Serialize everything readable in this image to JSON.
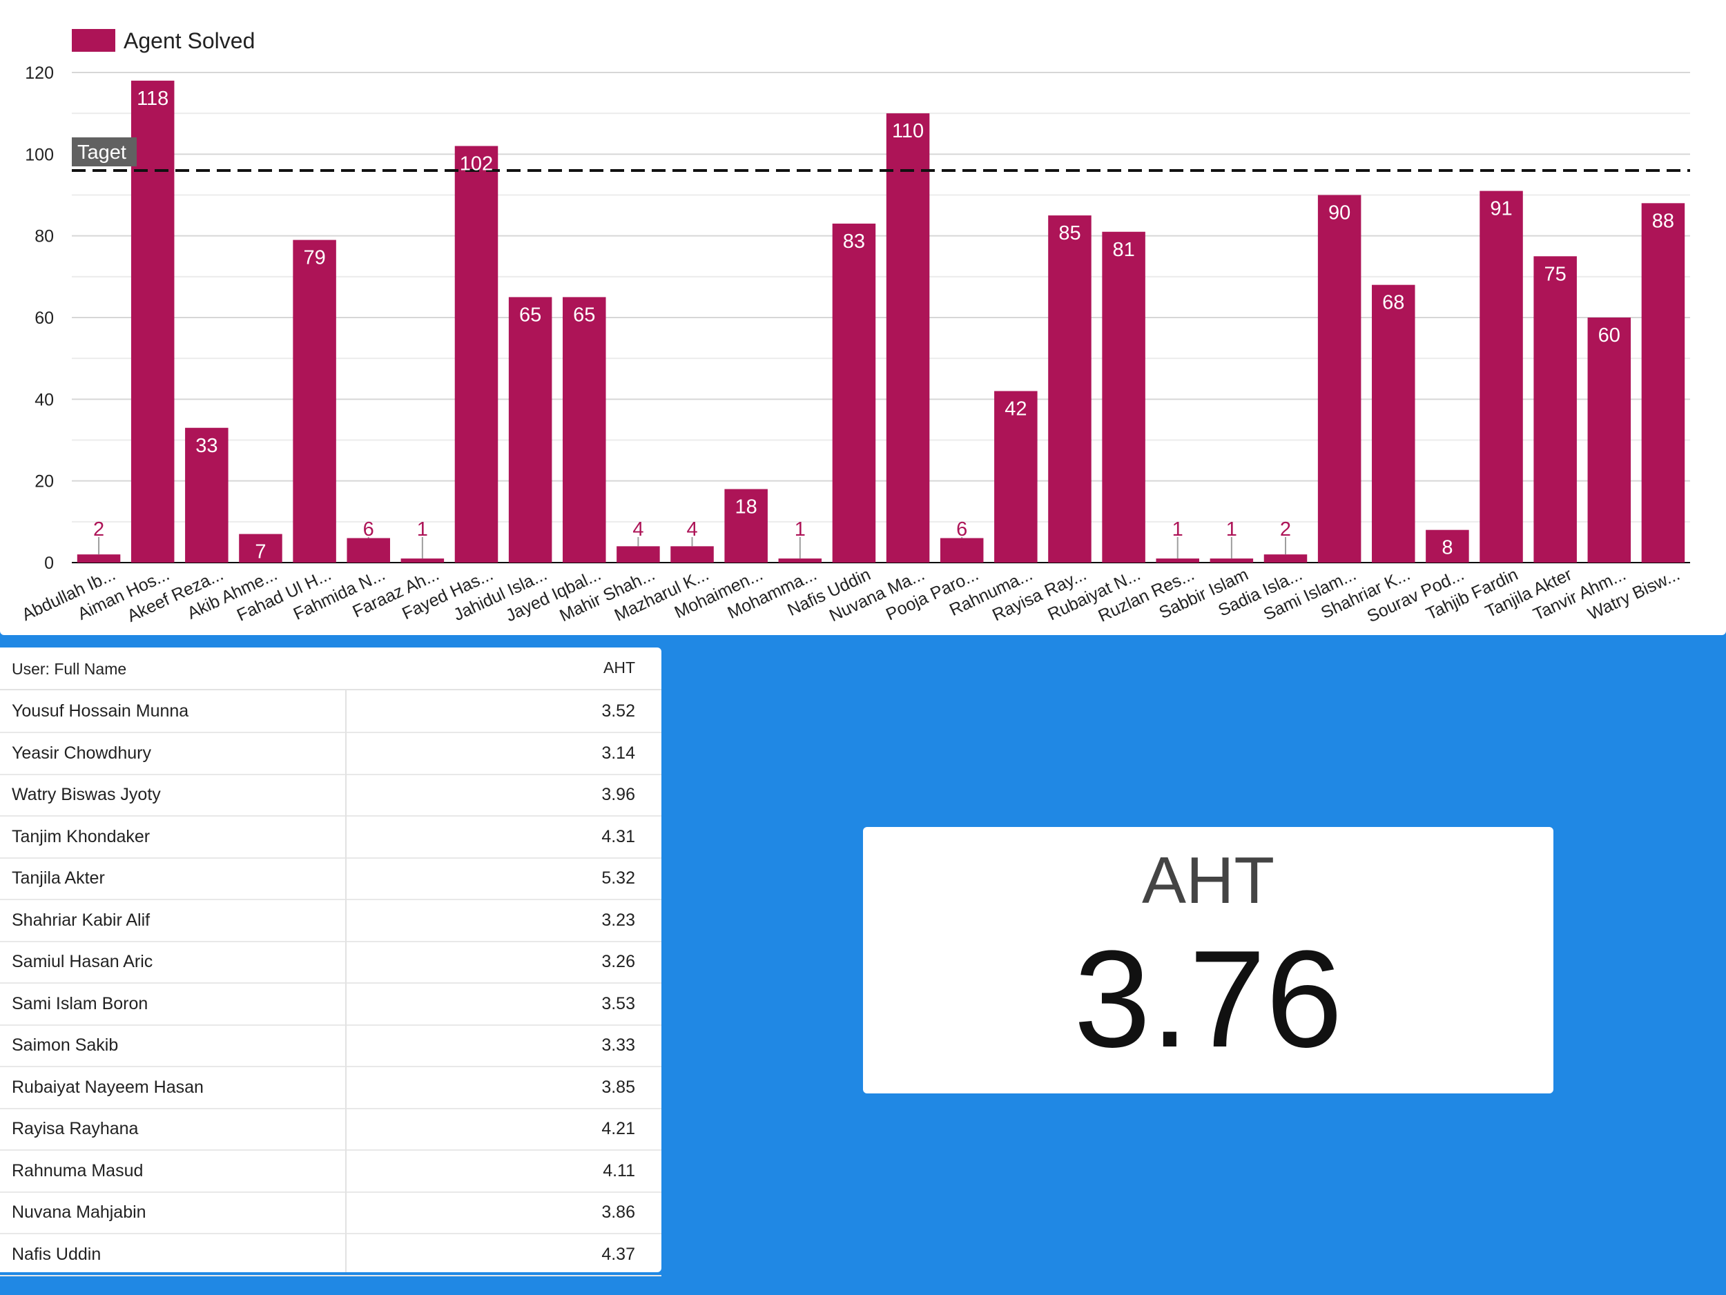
{
  "chart_data": {
    "type": "bar",
    "legend": {
      "label": "Agent Solved",
      "color": "#ad1457",
      "position": "top-left"
    },
    "categories": [
      "Abdullah Ib...",
      "Aiman Hos...",
      "Akeef Reza...",
      "Akib Ahme...",
      "Fahad Ul H...",
      "Fahmida N...",
      "Faraaz Ah...",
      "Fayed Has...",
      "Jahidul Isla...",
      "Jayed Iqbal...",
      "Mahir Shah...",
      "Mazharul K...",
      "Mohaimen...",
      "Mohamma...",
      "Nafis Uddin",
      "Nuvana Ma...",
      "Pooja Paro...",
      "Rahnuma...",
      "Rayisa Ray...",
      "Rubaiyat N...",
      "Ruzlan Res...",
      "Sabbir Islam",
      "Sadia Isla...",
      "Sami Islam...",
      "Shahriar K...",
      "Sourav Pod...",
      "Tahjib Fardin",
      "Tanjila Akter",
      "Tanvir Ahm...",
      "Watry Bisw..."
    ],
    "series": [
      {
        "name": "Agent Solved",
        "values": [
          2,
          118,
          33,
          7,
          79,
          6,
          1,
          102,
          65,
          65,
          4,
          4,
          18,
          1,
          83,
          110,
          6,
          42,
          85,
          81,
          1,
          1,
          2,
          90,
          68,
          8,
          91,
          75,
          60,
          88
        ]
      }
    ],
    "yticks": [
      "0",
      "20",
      "40",
      "60",
      "80",
      "100",
      "120"
    ],
    "ylim": [
      0,
      120
    ],
    "grid": true,
    "reference_line": {
      "label": "Taget",
      "value": 96,
      "style": "dashed"
    }
  },
  "table": {
    "headers": {
      "name": "User: Full Name",
      "aht": "AHT"
    },
    "rows": [
      {
        "name": "Yousuf Hossain Munna",
        "aht": "3.52"
      },
      {
        "name": "Yeasir Chowdhury",
        "aht": "3.14"
      },
      {
        "name": "Watry Biswas Jyoty",
        "aht": "3.96"
      },
      {
        "name": "Tanjim Khondaker",
        "aht": "4.31"
      },
      {
        "name": "Tanjila Akter",
        "aht": "5.32"
      },
      {
        "name": "Shahriar Kabir Alif",
        "aht": "3.23"
      },
      {
        "name": "Samiul Hasan Aric",
        "aht": "3.26"
      },
      {
        "name": "Sami Islam Boron",
        "aht": "3.53"
      },
      {
        "name": "Saimon Sakib",
        "aht": "3.33"
      },
      {
        "name": "Rubaiyat Nayeem Hasan",
        "aht": "3.85"
      },
      {
        "name": "Rayisa Rayhana",
        "aht": "4.21"
      },
      {
        "name": "Rahnuma Masud",
        "aht": "4.11"
      },
      {
        "name": "Nuvana Mahjabin",
        "aht": "3.86"
      },
      {
        "name": "Nafis Uddin",
        "aht": "4.37"
      }
    ]
  },
  "kpi": {
    "title": "AHT",
    "value": "3.76"
  },
  "colors": {
    "bar": "#ad1457",
    "background": "#2088e4",
    "panel": "#ffffff"
  }
}
